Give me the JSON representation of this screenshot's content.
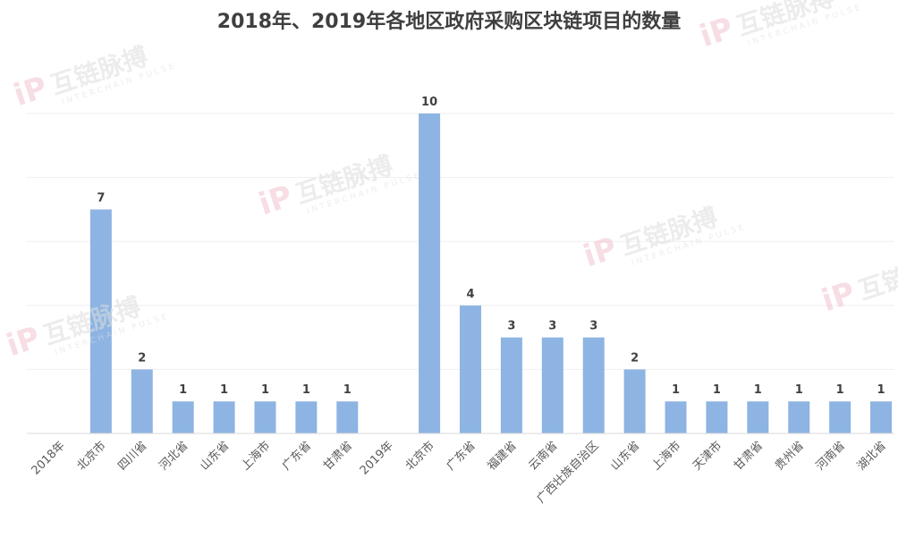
{
  "chart_data": {
    "type": "bar",
    "title": "2018年、2019年各地区政府采购区块链项目的数量",
    "xlabel": "",
    "ylabel": "",
    "ylim": [
      0,
      10
    ],
    "grid": true,
    "legend": "none",
    "bar_color": "#8db4e2",
    "groups": [
      {
        "label": "2018年",
        "categories": [
          "北京市",
          "四川省",
          "河北省",
          "山东省",
          "上海市",
          "广东省",
          "甘肃省"
        ],
        "values": [
          7,
          2,
          1,
          1,
          1,
          1,
          1
        ]
      },
      {
        "label": "2019年",
        "categories": [
          "北京市",
          "广东省",
          "福建省",
          "云南省",
          "广西壮族自治区",
          "山东省",
          "上海市",
          "天津市",
          "甘肃省",
          "贵州省",
          "河南省",
          "湖北省"
        ],
        "values": [
          10,
          4,
          3,
          3,
          3,
          2,
          1,
          1,
          1,
          1,
          1,
          1
        ]
      }
    ]
  },
  "watermark": {
    "mark": "iP",
    "name": "互链脉搏",
    "tagline": "INTERCHAIN PULSE"
  }
}
